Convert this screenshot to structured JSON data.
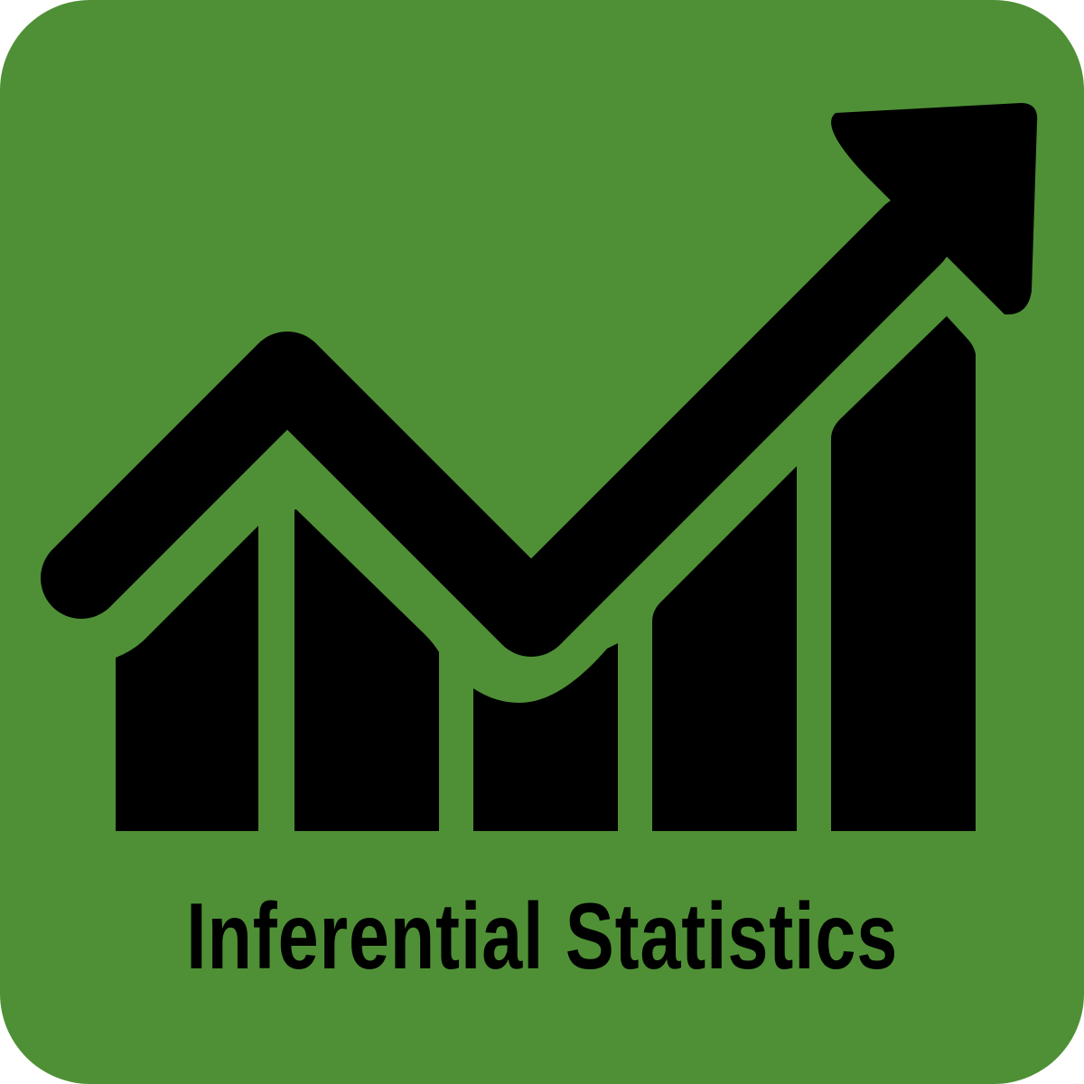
{
  "icon": {
    "name": "growth-chart-arrow-icon",
    "background_color": "#4f9036",
    "foreground_color": "#000000",
    "bar_count": 5
  },
  "caption": {
    "text": "Inferential Statistics"
  }
}
